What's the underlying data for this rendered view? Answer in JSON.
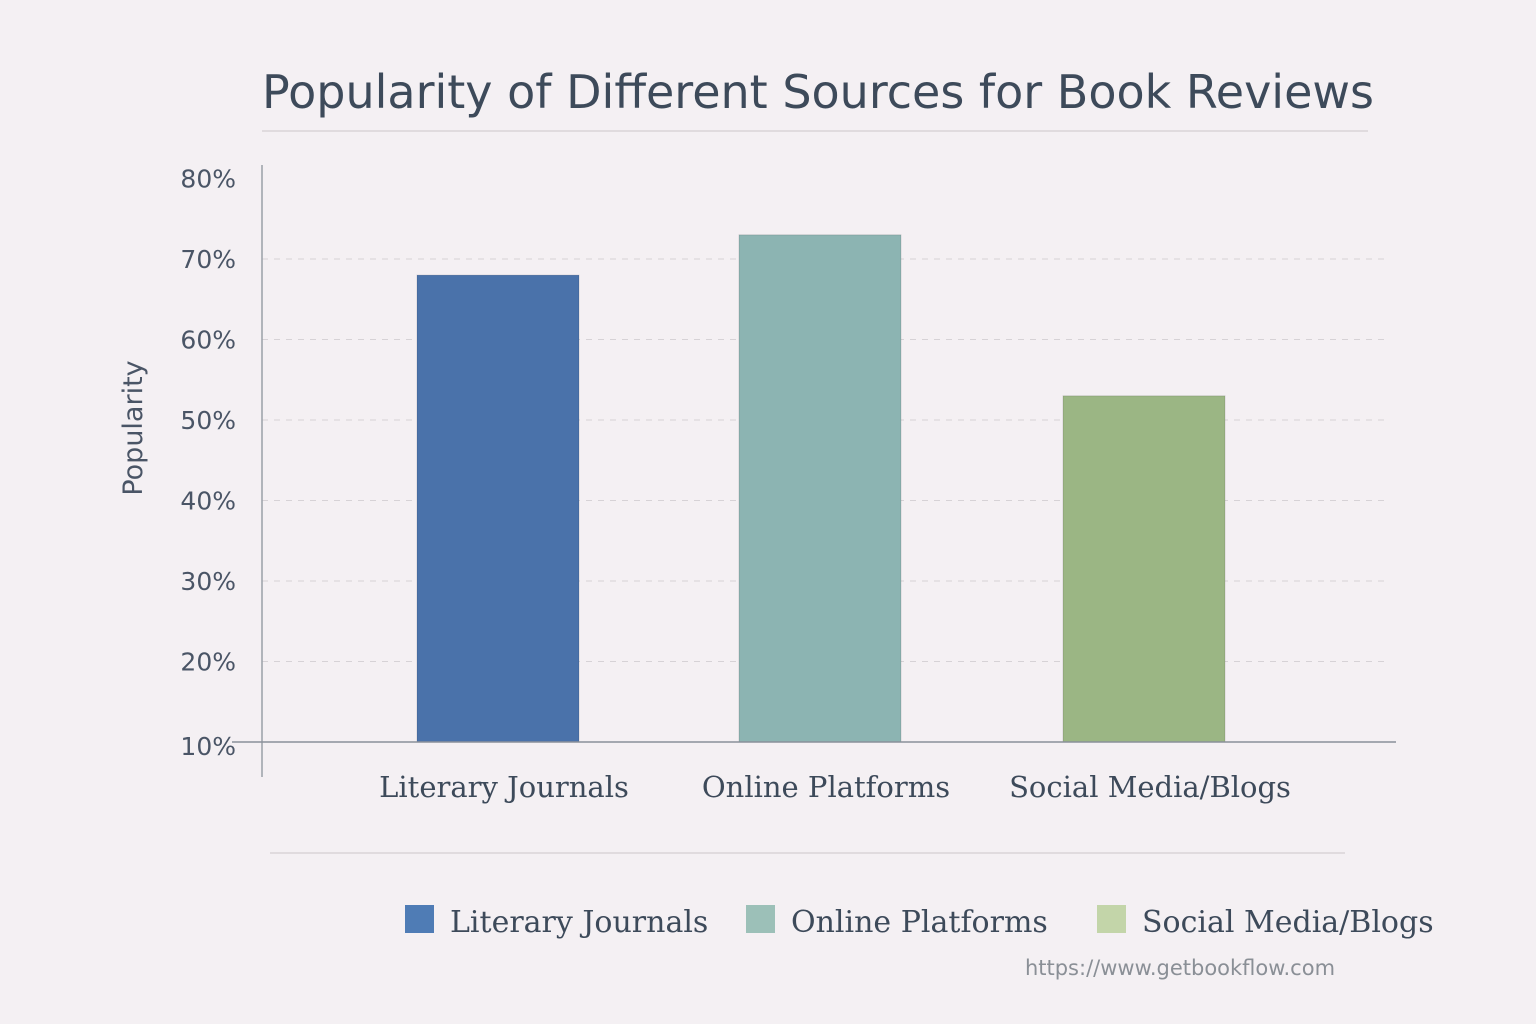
{
  "chart_data": {
    "type": "bar",
    "title": "Popularity of Different Sources for Book Reviews",
    "xlabel": "",
    "ylabel": "Popularity",
    "categories": [
      "Literary Journals",
      "Online Platforms",
      "Social Media/Blogs"
    ],
    "values": [
      68,
      73,
      53
    ],
    "unit": "%",
    "ylim": [
      10,
      80
    ],
    "yticks": [
      "10%",
      "20%",
      "30%",
      "40%",
      "50%",
      "60%",
      "70%",
      "80%"
    ],
    "colors": [
      "#4a72aa",
      "#8cb4b2",
      "#9bb684"
    ],
    "legend": {
      "placement": "bottom",
      "entries": [
        "Literary Journals",
        "Online Platforms",
        "Social Media/Blogs"
      ],
      "colors": [
        "#4f7cb5",
        "#9cc0b8",
        "#c3d5a9"
      ]
    },
    "grid": true
  },
  "footer": {
    "url": "https://www.getbookflow.com"
  }
}
